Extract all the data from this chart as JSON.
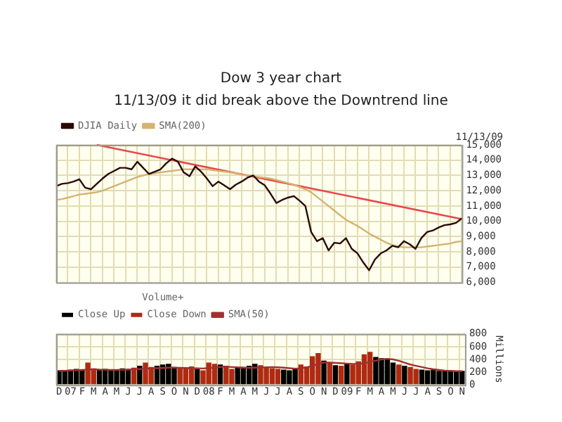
{
  "chart_data": [
    {
      "type": "line",
      "title": "Dow 3 year chart",
      "subtitle": "11/13/09 it did break above the Downtrend line",
      "annotations": [
        "11/13/09"
      ],
      "categories": [
        null,
        null,
        null,
        null,
        null,
        null,
        null,
        null,
        null,
        null,
        null,
        null,
        null,
        null,
        null,
        null,
        null,
        null,
        null,
        null,
        null,
        null,
        null,
        null,
        null,
        null,
        null,
        null,
        null,
        null,
        null,
        null,
        null,
        null,
        null,
        null,
        null,
        null,
        null,
        null,
        null,
        null,
        null,
        null,
        null,
        null,
        null,
        null,
        null,
        null,
        null,
        null,
        null,
        null,
        null,
        null,
        null,
        null,
        null,
        null,
        null,
        null,
        null,
        null,
        null,
        null,
        null,
        null,
        null,
        null,
        null
      ],
      "series": [
        {
          "name": "DJIA Daily",
          "color": "#2a0a05",
          "values": [
            12300,
            12450,
            12500,
            12600,
            12750,
            12200,
            12100,
            12450,
            12800,
            13100,
            13300,
            13500,
            13500,
            13400,
            13900,
            13500,
            13100,
            13250,
            13400,
            13800,
            14100,
            13900,
            13200,
            12950,
            13600,
            13250,
            12800,
            12300,
            12600,
            12350,
            12100,
            12400,
            12600,
            12850,
            13000,
            12600,
            12350,
            11800,
            11200,
            11400,
            11550,
            11650,
            11350,
            11000,
            9300,
            8700,
            8900,
            8100,
            8600,
            8550,
            8900,
            8200,
            7900,
            7300,
            6800,
            7500,
            7900,
            8100,
            8400,
            8300,
            8700,
            8500,
            8200,
            8900,
            9300,
            9400,
            9600,
            9750,
            9800,
            9900,
            10200
          ]
        },
        {
          "name": "SMA(200)",
          "color": "#d4b470",
          "values": [
            11400,
            11450,
            11550,
            11650,
            11750,
            11800,
            11850,
            11900,
            12000,
            12150,
            12300,
            12450,
            12600,
            12750,
            12900,
            13000,
            13100,
            13150,
            13200,
            13250,
            13300,
            13350,
            13400,
            13400,
            13400,
            13400,
            13400,
            13350,
            13300,
            13250,
            13200,
            13150,
            13050,
            13000,
            12950,
            12900,
            12850,
            12800,
            12700,
            12600,
            12500,
            12400,
            12250,
            12100,
            11900,
            11600,
            11300,
            11000,
            10700,
            10400,
            10100,
            9900,
            9700,
            9450,
            9200,
            9000,
            8800,
            8600,
            8450,
            8350,
            8300,
            8300,
            8300,
            8300,
            8350,
            8400,
            8450,
            8500,
            8550,
            8650,
            8700
          ]
        },
        {
          "color": "#e84848",
          "values": [
            null,
            null,
            null,
            null,
            null,
            null,
            null,
            15000,
            null,
            null,
            null,
            null,
            null,
            null,
            null,
            null,
            null,
            null,
            null,
            null,
            null,
            null,
            null,
            null,
            null,
            null,
            null,
            null,
            null,
            null,
            null,
            null,
            null,
            null,
            null,
            null,
            null,
            null,
            null,
            null,
            null,
            null,
            null,
            null,
            null,
            null,
            null,
            null,
            null,
            null,
            null,
            null,
            null,
            null,
            null,
            null,
            null,
            null,
            null,
            null,
            null,
            null,
            null,
            null,
            null,
            null,
            null,
            null,
            null,
            null,
            10150
          ]
        }
      ],
      "ylim": [
        6000,
        15000
      ],
      "yticks": [
        {
          "value": 6000,
          "label": "6,000"
        },
        {
          "value": 7000,
          "label": "7,000"
        },
        {
          "value": 8000,
          "label": "8,000"
        },
        {
          "value": 9000,
          "label": "9,000"
        },
        {
          "value": 10000,
          "label": "10,000"
        },
        {
          "value": 11000,
          "label": "11,000"
        },
        {
          "value": 12000,
          "label": "12,000"
        },
        {
          "value": 13000,
          "label": "13,000"
        },
        {
          "value": 14000,
          "label": "14,000"
        },
        {
          "value": 15000,
          "label": "15,000"
        }
      ],
      "grid": true,
      "legend": "top left",
      "tick_labels": "y",
      "marker": "none"
    },
    {
      "type": "bar",
      "legend_title": "Volume+",
      "ylabel": "Millions",
      "categories": [
        "D",
        null,
        "07",
        null,
        "F",
        null,
        "M",
        null,
        "A",
        null,
        "M",
        null,
        "J",
        null,
        "J",
        null,
        "A",
        null,
        "S",
        null,
        "O",
        null,
        "N",
        null,
        "D",
        null,
        "08",
        null,
        "F",
        null,
        "M",
        null,
        "A",
        null,
        "M",
        null,
        "J",
        null,
        "J",
        null,
        "A",
        null,
        "S",
        null,
        "O",
        null,
        "N",
        null,
        "D",
        null,
        "09",
        null,
        "F",
        null,
        "M",
        null,
        "A",
        null,
        "M",
        null,
        "J",
        null,
        "J",
        null,
        "A",
        null,
        "S",
        null,
        "O",
        null,
        "N"
      ],
      "series": [
        {
          "name": "Close Up",
          "color": "#000000",
          "values": [
            230,
            220,
            240,
            250,
            230,
            null,
            null,
            240,
            250,
            230,
            240,
            260,
            250,
            null,
            300,
            null,
            null,
            300,
            320,
            330,
            280,
            null,
            null,
            null,
            250,
            null,
            null,
            null,
            320,
            null,
            null,
            270,
            280,
            300,
            330,
            null,
            null,
            null,
            null,
            240,
            230,
            250,
            null,
            null,
            null,
            null,
            380,
            null,
            310,
            null,
            330,
            null,
            null,
            null,
            null,
            440,
            420,
            400,
            350,
            null,
            300,
            null,
            null,
            240,
            230,
            240,
            220,
            230,
            220,
            210,
            220
          ]
        },
        {
          "name": "Close Down",
          "color": "#b02a12",
          "values": [
            null,
            null,
            null,
            null,
            null,
            350,
            260,
            null,
            null,
            null,
            null,
            null,
            null,
            270,
            null,
            350,
            280,
            null,
            null,
            null,
            null,
            260,
            270,
            290,
            null,
            230,
            350,
            330,
            null,
            300,
            250,
            null,
            null,
            null,
            null,
            310,
            280,
            260,
            250,
            null,
            null,
            null,
            320,
            290,
            450,
            500,
            null,
            350,
            null,
            300,
            null,
            320,
            370,
            480,
            520,
            null,
            null,
            null,
            null,
            320,
            null,
            280,
            250,
            null,
            null,
            null,
            null,
            null,
            null,
            null,
            null
          ]
        },
        {
          "name": "SMA(50)",
          "type": "line",
          "color": "#a03030",
          "values": [
            220,
            222,
            225,
            230,
            235,
            240,
            245,
            240,
            238,
            235,
            235,
            238,
            240,
            245,
            250,
            255,
            260,
            262,
            265,
            270,
            270,
            268,
            265,
            262,
            260,
            258,
            265,
            270,
            280,
            285,
            280,
            275,
            270,
            268,
            270,
            272,
            275,
            278,
            275,
            270,
            262,
            255,
            260,
            275,
            300,
            330,
            350,
            350,
            345,
            340,
            335,
            330,
            330,
            340,
            360,
            380,
            400,
            410,
            400,
            380,
            350,
            320,
            300,
            280,
            260,
            245,
            235,
            225,
            220,
            215,
            215
          ]
        }
      ],
      "ylim": [
        0,
        800
      ],
      "yticks": [
        0,
        200,
        400,
        600,
        800
      ],
      "grid": true,
      "legend": "top left",
      "marker": "none"
    }
  ]
}
